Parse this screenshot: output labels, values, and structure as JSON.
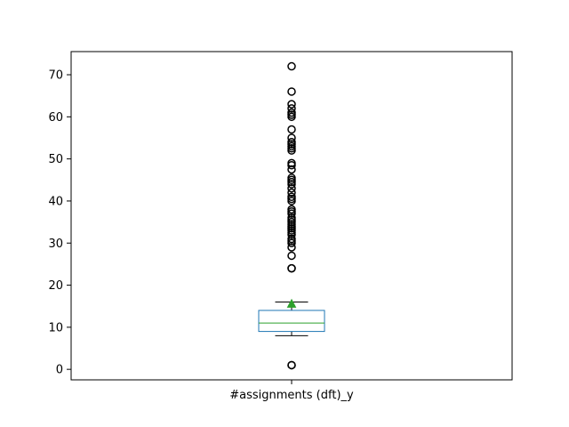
{
  "chart_data": {
    "type": "box",
    "categories": [
      "#assignments (dft)_y"
    ],
    "box": {
      "whisker_low": 8,
      "q1": 9,
      "median": 11,
      "q3": 14,
      "whisker_high": 16,
      "mean": 15.5,
      "outliers": [
        1,
        1,
        24,
        24,
        27,
        29,
        30,
        30.5,
        31,
        32,
        32.5,
        33,
        33.5,
        34,
        34.5,
        35,
        35.5,
        36,
        37,
        37.5,
        38,
        40,
        40.5,
        41,
        42,
        43,
        44,
        44.5,
        45,
        45.5,
        47.5,
        48.5,
        49,
        52,
        52.5,
        53,
        53.5,
        54,
        55,
        57,
        60,
        60.5,
        61,
        62,
        63,
        66,
        72
      ]
    },
    "yticks": [
      0,
      10,
      20,
      30,
      40,
      50,
      60,
      70
    ],
    "ylim": [
      -2.5,
      75.5
    ],
    "grid": false,
    "colors": {
      "box": "#1f77b4",
      "median": "#2ca02c",
      "mean_marker": "#2ca02c",
      "whisker": "#000000",
      "outlier": "#000000"
    }
  }
}
